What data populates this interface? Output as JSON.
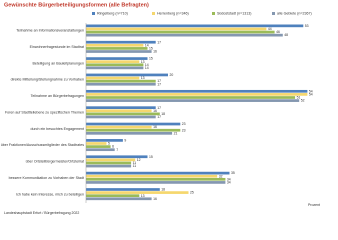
{
  "chart_data": {
    "type": "bar",
    "orientation": "horizontal",
    "title": "Gewünschte Bürgerbeteiligungsformen (alle Befragten)",
    "x_label": "Prozent",
    "source": "Landeshauptstadt Erfurt / Bürgerbefragung 2022",
    "categories": [
      "Teilnahme an Informationsveranstaltungen",
      "Einwohnerfragestunde im Stadtrat",
      "Beteiligung an Bauleitplanungen",
      "direkte Mitteilung/Stellungnahme zu Vorhaben",
      "Teilnahme an Bürgerbefragungen",
      "Foren auf Stadtteilebene zu spezifischen Themen",
      "durch ein besuchtes Engagement",
      "über Fraktionen/Ausschussmitglieder des Stadtrates",
      "über Ortsteilbürgermeister/Ortsteilrat",
      "bessere Kommunikation zu Vorhaben der Stadt",
      "Ich habe kein Interesse, mich zu beteiligen"
    ],
    "series": [
      {
        "name": "Ringelberg (n=710)",
        "color": "#4f81bd",
        "values": [
          53,
          17,
          15,
          20,
          54,
          17,
          23,
          9,
          15,
          35,
          18
        ]
      },
      {
        "name": "Herrenberg (n=346)",
        "color": "#f5d76e",
        "values": [
          44,
          14,
          13,
          13,
          54,
          16,
          16,
          5,
          12,
          32,
          25
        ]
      },
      {
        "name": "Südoststadt (n=1313)",
        "color": "#9bbb59",
        "values": [
          46,
          15,
          14,
          17,
          51,
          18,
          23,
          6,
          11,
          34,
          13
        ]
      },
      {
        "name": "alle Gebiete (n=2367)",
        "color": "#8497b0",
        "values": [
          48,
          16,
          14,
          17,
          52,
          17,
          21,
          7,
          11,
          34,
          16
        ]
      }
    ],
    "xlim": [
      0,
      60
    ]
  }
}
